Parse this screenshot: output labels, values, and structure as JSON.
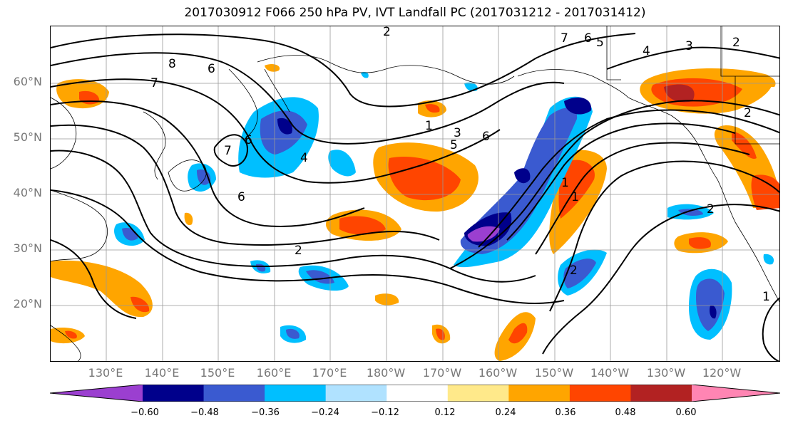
{
  "title": "2017030912 F066 250 hPa PV, IVT Landfall PC (2017031212 - 2017031412)",
  "lat_labels": [
    "60°N",
    "50°N",
    "40°N",
    "30°N",
    "20°N"
  ],
  "lon_labels": [
    "130°E",
    "140°E",
    "150°E",
    "160°E",
    "170°E",
    "180°W",
    "170°W",
    "160°W",
    "150°W",
    "140°W",
    "130°W",
    "120°W"
  ],
  "contour_labels": [
    "2",
    "7",
    "6",
    "5",
    "4",
    "3",
    "2",
    "8",
    "7",
    "6",
    "6",
    "1",
    "3",
    "6",
    "5",
    "7",
    "6",
    "4",
    "2",
    "2",
    "1",
    "1",
    "2",
    "2",
    "1"
  ],
  "colorbar": {
    "tick_labels": [
      "−0.60",
      "−0.48",
      "−0.36",
      "−0.24",
      "−0.12",
      "0.12",
      "0.24",
      "0.36",
      "0.48",
      "0.60"
    ],
    "colors": [
      "#9b3fd0",
      "#00008b",
      "#3a5ad0",
      "#00bfff",
      "#b0e2ff",
      "#ffffff",
      "#ffe98a",
      "#ffa500",
      "#ff4500",
      "#b22222",
      "#ff85b3"
    ]
  }
}
